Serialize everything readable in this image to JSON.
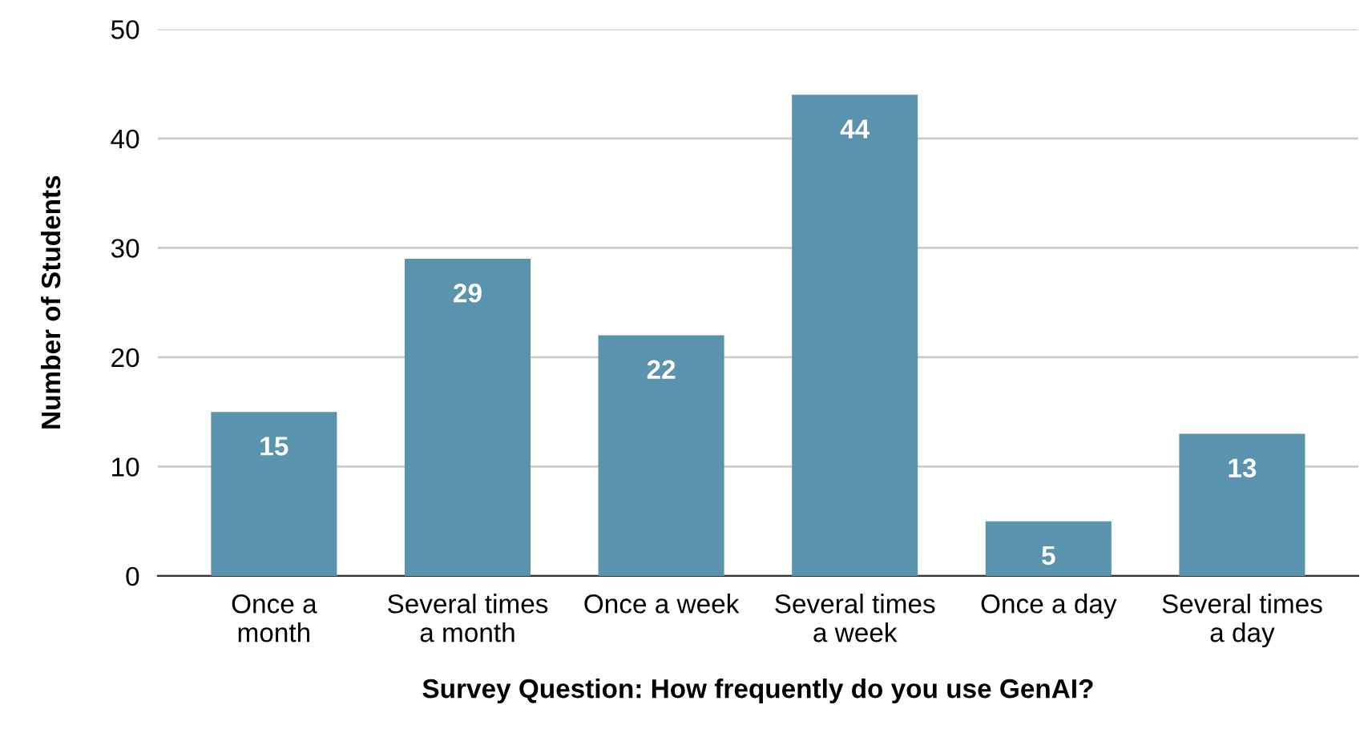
{
  "chart_data": {
    "type": "bar",
    "xlabel": "Survey Question: How frequently do you use GenAI?",
    "ylabel": "Number of Students",
    "categories": [
      "Once a\nmonth",
      "Several times\na month",
      "Once a week",
      "Several times\na week",
      "Once a day",
      "Several times\na day"
    ],
    "values": [
      15,
      29,
      22,
      44,
      5,
      13
    ],
    "color": "#5a93ae",
    "ylim": [
      0,
      50
    ],
    "yticks": [
      0,
      10,
      20,
      30,
      40,
      50
    ],
    "grid": "y",
    "data_labels": true
  }
}
